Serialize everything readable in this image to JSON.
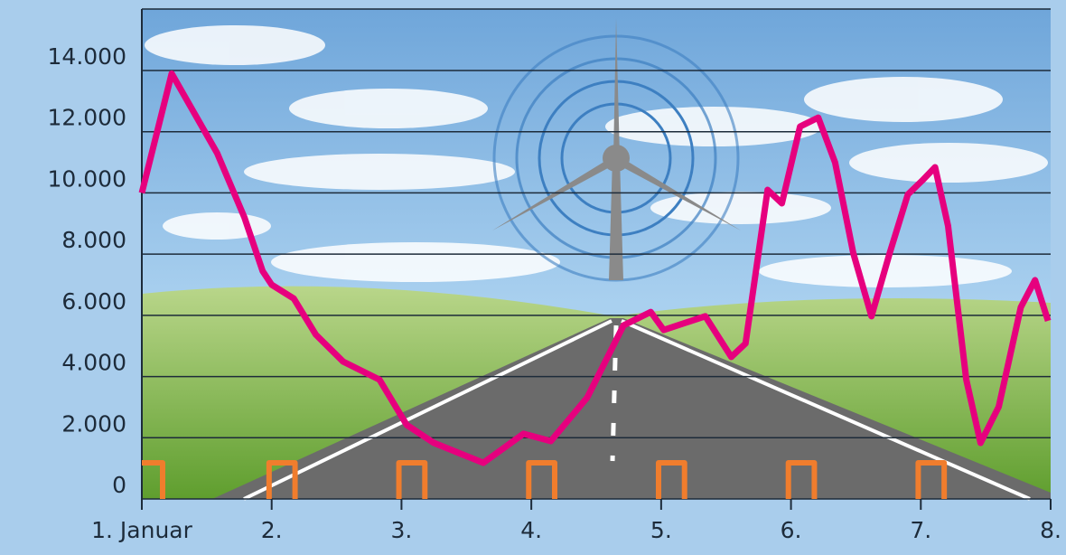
{
  "chart_data": {
    "type": "line",
    "xlim": [
      0,
      7
    ],
    "xticks": [
      {
        "value": 0,
        "label": "1. Januar"
      },
      {
        "value": 1,
        "label": "2."
      },
      {
        "value": 2,
        "label": "3."
      },
      {
        "value": 3,
        "label": "4."
      },
      {
        "value": 4,
        "label": "5."
      },
      {
        "value": 5,
        "label": "6."
      },
      {
        "value": 6,
        "label": "7."
      },
      {
        "value": 7,
        "label": "8."
      }
    ],
    "ylim": [
      0,
      14000
    ],
    "yticks": [
      0,
      {
        "value": 2000,
        "label": "2.000"
      },
      {
        "value": 4000,
        "label": "4.000"
      },
      {
        "value": 6000,
        "label": "6.000"
      },
      {
        "value": 8000,
        "label": "8.000"
      },
      {
        "value": 10000,
        "label": "10.000"
      },
      {
        "value": 12000,
        "label": "12.000"
      },
      {
        "value": 14000,
        "label": "14.000"
      }
    ],
    "grid": true,
    "series": [
      {
        "color": "#e6007e",
        "x": [
          0,
          0.23,
          0.58,
          0.79,
          0.93,
          1.0,
          1.17,
          1.34,
          1.55,
          1.83,
          2.04,
          2.25,
          2.63,
          2.94,
          3.15,
          3.43,
          3.71,
          3.92,
          4.02,
          4.34,
          4.54,
          4.65,
          4.82,
          4.93,
          5.07,
          5.21,
          5.34,
          5.48,
          5.62,
          5.76,
          5.9,
          6.01,
          6.11,
          6.21,
          6.35,
          6.46,
          6.6,
          6.77,
          6.88,
          6.98
        ],
        "values": [
          10000,
          13900,
          11300,
          9200,
          7450,
          7000,
          6550,
          5370,
          4490,
          3900,
          2420,
          1830,
          1180,
          2130,
          1890,
          3310,
          5670,
          6110,
          5520,
          5970,
          4640,
          5080,
          10100,
          9660,
          12170,
          12460,
          10990,
          8030,
          5970,
          8030,
          9950,
          10400,
          10840,
          8920,
          3900,
          1830,
          3010,
          6260,
          7150,
          5820
        ]
      },
      {
        "color": "#f07d2d",
        "x": [
          0,
          0.16,
          0.16,
          0.5,
          0.98,
          0.98,
          1.18,
          1.18,
          1.5,
          1.98,
          1.98,
          2.18,
          2.18,
          2.5,
          2.98,
          2.98,
          3.18,
          3.18,
          3.5,
          3.98,
          3.98,
          4.18,
          4.18,
          4.5,
          4.98,
          4.98,
          5.18,
          5.18,
          5.5,
          5.98,
          5.98,
          6.18,
          6.18
        ],
        "values": [
          1180,
          1180,
          0,
          null,
          0,
          1180,
          1180,
          0,
          null,
          0,
          1180,
          1180,
          0,
          null,
          0,
          1180,
          1180,
          0,
          null,
          0,
          1180,
          1180,
          0,
          null,
          0,
          1180,
          1180,
          0,
          null,
          0,
          1180,
          1180,
          0
        ]
      }
    ]
  }
}
